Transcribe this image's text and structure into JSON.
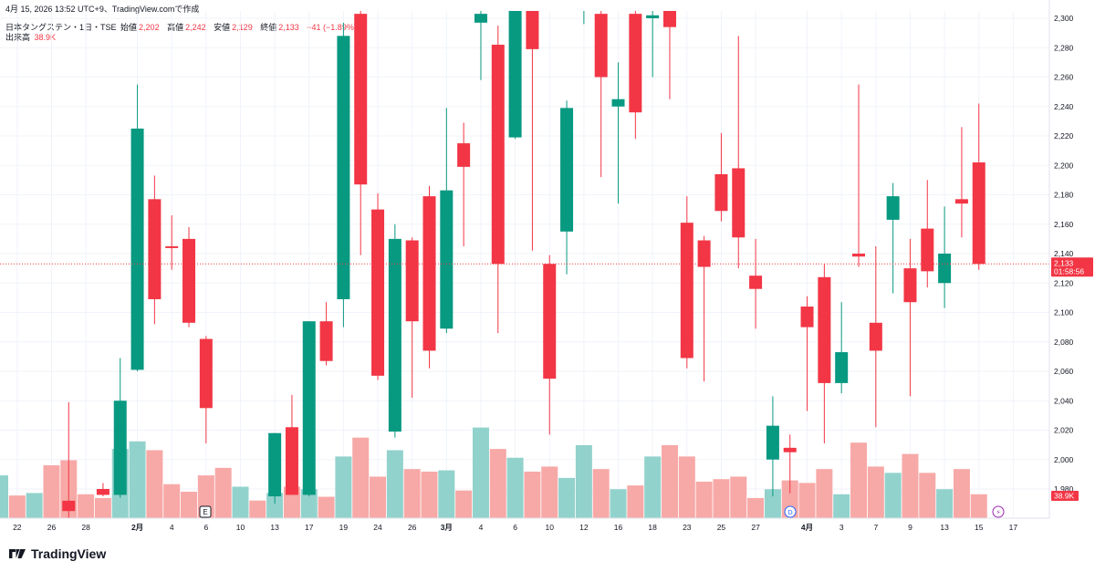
{
  "header": {
    "line": "4月 15, 2026 13:52 UTC+9、TradingView.comで作成"
  },
  "legend": {
    "symbol": "日本タングステン・1日・TSE",
    "open_label": "始値",
    "open": "2,202",
    "high_label": "高値",
    "high": "2,242",
    "low_label": "安値",
    "low": "2,129",
    "close_label": "終値",
    "close": "2,133",
    "change": "−41 (−1.89%)",
    "volume_label": "出来高",
    "volume": "38.9K"
  },
  "price_tag": {
    "price": "2,133",
    "countdown": "01:58:56"
  },
  "volume_tag": "38.9K",
  "markers": {
    "earnings": "E",
    "dividend": "D",
    "split": "⚡"
  },
  "logo": {
    "text": "TradingView"
  },
  "colors": {
    "up": "#089981",
    "down": "#f23645",
    "up_volume": "#92d2cc",
    "down_volume": "#f7a9a7"
  },
  "chart_data": {
    "type": "candlestick",
    "y_axis": {
      "min": 1977,
      "max": 2303,
      "ticks": [
        1980,
        2000,
        2020,
        2040,
        2060,
        2080,
        2100,
        2120,
        2140,
        2160,
        2180,
        2200,
        2220,
        2240,
        2260,
        2280,
        2300
      ]
    },
    "y_tick_labels": [
      "1,980",
      "2,000",
      "2,020",
      "2,040",
      "2,060",
      "2,080",
      "2,100",
      "2,120",
      "2,140",
      "2,160",
      "2,180",
      "2,200",
      "2,220",
      "2,240",
      "2,260",
      "2,280",
      "2,300"
    ],
    "x_tick_labels": [
      {
        "i": 1,
        "label": "22"
      },
      {
        "i": 3,
        "label": "26"
      },
      {
        "i": 5,
        "label": "28"
      },
      {
        "i": 8,
        "label": "2月",
        "bold": true
      },
      {
        "i": 10,
        "label": "4"
      },
      {
        "i": 12,
        "label": "6"
      },
      {
        "i": 14,
        "label": "10"
      },
      {
        "i": 16,
        "label": "13"
      },
      {
        "i": 18,
        "label": "17"
      },
      {
        "i": 20,
        "label": "19"
      },
      {
        "i": 22,
        "label": "24"
      },
      {
        "i": 24,
        "label": "26"
      },
      {
        "i": 26,
        "label": "3月",
        "bold": true
      },
      {
        "i": 28,
        "label": "4"
      },
      {
        "i": 30,
        "label": "6"
      },
      {
        "i": 32,
        "label": "10"
      },
      {
        "i": 34,
        "label": "12"
      },
      {
        "i": 36,
        "label": "16"
      },
      {
        "i": 38,
        "label": "18"
      },
      {
        "i": 40,
        "label": "23"
      },
      {
        "i": 42,
        "label": "25"
      },
      {
        "i": 44,
        "label": "27"
      },
      {
        "i": 47,
        "label": "4月",
        "bold": true
      },
      {
        "i": 49,
        "label": "3"
      },
      {
        "i": 51,
        "label": "7"
      },
      {
        "i": 53,
        "label": "9"
      },
      {
        "i": 55,
        "label": "13"
      },
      {
        "i": 57,
        "label": "15"
      },
      {
        "i": 59,
        "label": "17"
      }
    ],
    "candles": [
      {
        "o": null,
        "h": null,
        "l": null,
        "c": null,
        "v": 0.34
      },
      {
        "o": null,
        "h": null,
        "l": null,
        "c": null,
        "v": 0.18
      },
      {
        "o": null,
        "h": null,
        "l": null,
        "c": null,
        "v": 0.2
      },
      {
        "o": null,
        "h": null,
        "l": null,
        "c": null,
        "v": 0.42
      },
      {
        "o": 1972,
        "h": 2039,
        "l": 1960,
        "c": 1965,
        "v": 0.46
      },
      {
        "o": null,
        "h": null,
        "l": null,
        "c": null,
        "v": 0.19
      },
      {
        "o": 1980,
        "h": 1984,
        "l": 1975,
        "c": 1976,
        "v": 0.16
      },
      {
        "o": 1976,
        "h": 2069,
        "l": 1974,
        "c": 2040,
        "v": 0.55
      },
      {
        "o": 2061,
        "h": 2255,
        "l": 2060,
        "c": 2225,
        "v": 0.61
      },
      {
        "o": 2177,
        "h": 2193,
        "l": 2092,
        "c": 2109,
        "v": 0.54
      },
      {
        "o": 2145,
        "h": 2166,
        "l": 2129,
        "c": 2144,
        "v": 0.27
      },
      {
        "o": 2150,
        "h": 2158,
        "l": 2090,
        "c": 2093,
        "v": 0.21
      },
      {
        "o": 2082,
        "h": 2084,
        "l": 2011,
        "c": 2035,
        "v": 0.34
      },
      {
        "o": null,
        "h": null,
        "l": null,
        "c": null,
        "v": 0.4
      },
      {
        "o": null,
        "h": null,
        "l": null,
        "c": null,
        "v": 0.25
      },
      {
        "o": null,
        "h": null,
        "l": null,
        "c": null,
        "v": 0.14
      },
      {
        "o": 1975,
        "h": 2018,
        "l": 1970,
        "c": 2018,
        "v": 0.2
      },
      {
        "o": 2022,
        "h": 2044,
        "l": 1976,
        "c": 1976,
        "v": 0.25
      },
      {
        "o": 1976,
        "h": 2094,
        "l": 1975,
        "c": 2094,
        "v": 0.23
      },
      {
        "o": 2094,
        "h": 2107,
        "l": 2064,
        "c": 2067,
        "v": 0.17
      },
      {
        "o": 2109,
        "h": 2297,
        "l": 2090,
        "c": 2288,
        "v": 0.49
      },
      {
        "o": 2303,
        "h": 2312,
        "l": 2139,
        "c": 2187,
        "v": 0.64
      },
      {
        "o": 2170,
        "h": 2181,
        "l": 2054,
        "c": 2057,
        "v": 0.33
      },
      {
        "o": 2019,
        "h": 2160,
        "l": 2015,
        "c": 2150,
        "v": 0.54
      },
      {
        "o": 2149,
        "h": 2151,
        "l": 2042,
        "c": 2094,
        "v": 0.39
      },
      {
        "o": 2179,
        "h": 2186,
        "l": 2062,
        "c": 2074,
        "v": 0.37
      },
      {
        "o": 2089,
        "h": 2239,
        "l": 2086,
        "c": 2183,
        "v": 0.38
      },
      {
        "o": 2215,
        "h": 2229,
        "l": 2145,
        "c": 2199,
        "v": 0.22
      },
      {
        "o": 2297,
        "h": 2320,
        "l": 2258,
        "c": 2303,
        "v": 0.72
      },
      {
        "o": 2282,
        "h": 2295,
        "l": 2086,
        "c": 2133,
        "v": 0.55
      },
      {
        "o": 2219,
        "h": 2320,
        "l": 2218,
        "c": 2306,
        "v": 0.48
      },
      {
        "o": 2306,
        "h": 2320,
        "l": 2142,
        "c": 2279,
        "v": 0.37
      },
      {
        "o": 2133,
        "h": 2139,
        "l": 2017,
        "c": 2055,
        "v": 0.41
      },
      {
        "o": 2155,
        "h": 2244,
        "l": 2126,
        "c": 2239,
        "v": 0.32
      },
      {
        "o": null,
        "h": 2310,
        "l": 2296,
        "c": null,
        "v": 0.58
      },
      {
        "o": 2303,
        "h": 2320,
        "l": 2192,
        "c": 2260,
        "v": 0.39
      },
      {
        "o": 2240,
        "h": 2270,
        "l": 2174,
        "c": 2245,
        "v": 0.23
      },
      {
        "o": 2303,
        "h": 2320,
        "l": 2218,
        "c": 2236,
        "v": 0.26
      },
      {
        "o": 2300,
        "h": 2320,
        "l": 2260,
        "c": 2302,
        "v": 0.49
      },
      {
        "o": 2305,
        "h": 2320,
        "l": 2245,
        "c": 2294,
        "v": 0.58
      },
      {
        "o": 2161,
        "h": 2179,
        "l": 2062,
        "c": 2069,
        "v": 0.49
      },
      {
        "o": 2149,
        "h": 2152,
        "l": 2053,
        "c": 2131,
        "v": 0.29
      },
      {
        "o": 2194,
        "h": 2222,
        "l": 2162,
        "c": 2169,
        "v": 0.31
      },
      {
        "o": 2198,
        "h": 2288,
        "l": 2130,
        "c": 2151,
        "v": 0.33
      },
      {
        "o": 2125,
        "h": 2150,
        "l": 2089,
        "c": 2116,
        "v": 0.16
      },
      {
        "o": 2000,
        "h": 2043,
        "l": 1975,
        "c": 2023,
        "v": 0.23
      },
      {
        "o": 2008,
        "h": 2017,
        "l": 1977,
        "c": 2005,
        "v": 0.3
      },
      {
        "o": 2104,
        "h": 2111,
        "l": 2033,
        "c": 2090,
        "v": 0.28
      },
      {
        "o": 2124,
        "h": 2133,
        "l": 2011,
        "c": 2052,
        "v": 0.39
      },
      {
        "o": 2052,
        "h": 2107,
        "l": 2045,
        "c": 2073,
        "v": 0.19
      },
      {
        "o": 2140,
        "h": 2255,
        "l": 2131,
        "c": 2138,
        "v": 0.6
      },
      {
        "o": 2093,
        "h": 2145,
        "l": 2022,
        "c": 2074,
        "v": 0.41
      },
      {
        "o": 2163,
        "h": 2188,
        "l": 2113,
        "c": 2179,
        "v": 0.36
      },
      {
        "o": 2130,
        "h": 2150,
        "l": 2043,
        "c": 2107,
        "v": 0.51
      },
      {
        "o": 2157,
        "h": 2190,
        "l": 2117,
        "c": 2128,
        "v": 0.36
      },
      {
        "o": 2120,
        "h": 2172,
        "l": 2103,
        "c": 2140,
        "v": 0.23
      },
      {
        "o": 2177,
        "h": 2226,
        "l": 2151,
        "c": 2174,
        "v": 0.39
      },
      {
        "o": 2202,
        "h": 2242,
        "l": 2129,
        "c": 2133,
        "v": 0.19
      }
    ]
  }
}
